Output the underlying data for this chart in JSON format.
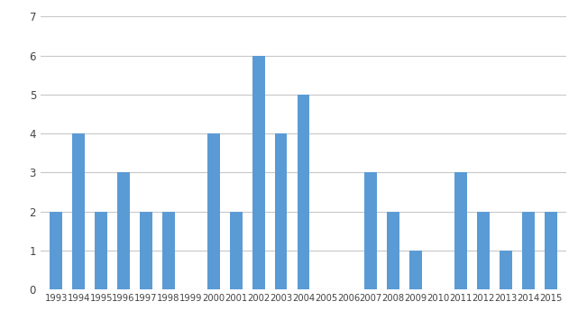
{
  "years": [
    1993,
    1994,
    1995,
    1996,
    1997,
    1998,
    1999,
    2000,
    2001,
    2002,
    2003,
    2004,
    2005,
    2006,
    2007,
    2008,
    2009,
    2010,
    2011,
    2012,
    2013,
    2014,
    2015
  ],
  "values": [
    2,
    4,
    2,
    3,
    2,
    2,
    0,
    4,
    2,
    6,
    4,
    5,
    0,
    0,
    3,
    2,
    1,
    0,
    3,
    2,
    1,
    2,
    2
  ],
  "bar_color": "#5b9bd5",
  "background_color": "#ffffff",
  "ylim": [
    0,
    7
  ],
  "yticks": [
    0,
    1,
    2,
    3,
    4,
    5,
    6,
    7
  ],
  "grid_color": "#c8c8c8",
  "bar_width": 0.55
}
